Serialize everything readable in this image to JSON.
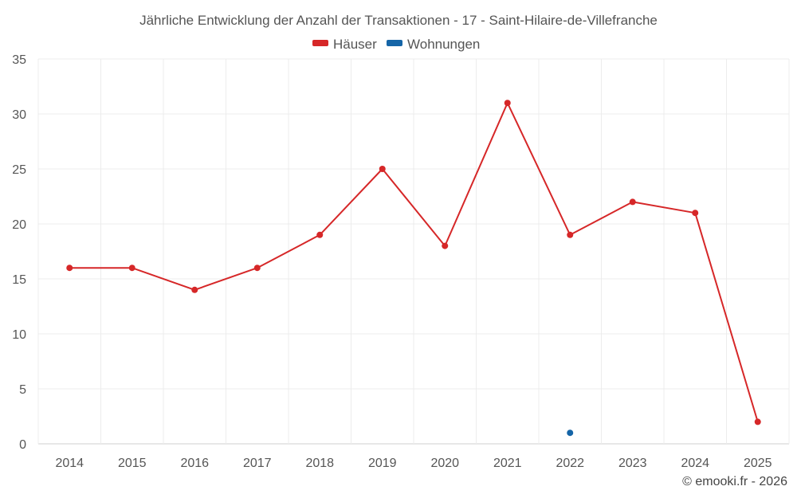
{
  "chart_data": {
    "type": "line",
    "title": "Jährliche Entwicklung der Anzahl der Transaktionen - 17 - Saint-Hilaire-de-Villefranche",
    "categories": [
      "2014",
      "2015",
      "2016",
      "2017",
      "2018",
      "2019",
      "2020",
      "2021",
      "2022",
      "2023",
      "2024",
      "2025"
    ],
    "series": [
      {
        "name": "Häuser",
        "color": "#d62728",
        "values": [
          16,
          16,
          14,
          16,
          19,
          25,
          18,
          31,
          19,
          22,
          21,
          2
        ]
      },
      {
        "name": "Wohnungen",
        "color": "#1565a7",
        "values": [
          null,
          null,
          null,
          null,
          null,
          null,
          null,
          null,
          1,
          null,
          null,
          null
        ]
      }
    ],
    "yticks": [
      0,
      5,
      10,
      15,
      20,
      25,
      30,
      35
    ],
    "ylim": [
      0,
      35
    ],
    "xlabel": "",
    "ylabel": "",
    "grid": true,
    "legend_position": "top-center"
  },
  "credit": "© emooki.fr - 2026"
}
